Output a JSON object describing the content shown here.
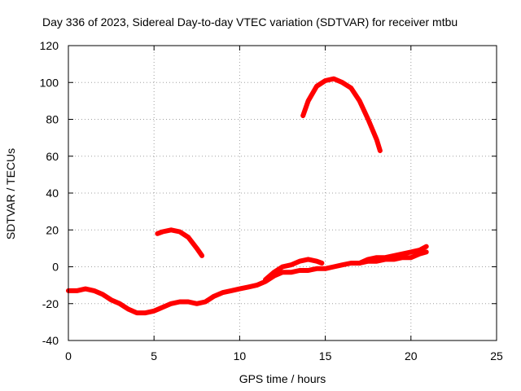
{
  "chart_data": {
    "type": "line",
    "title": "Day 336 of 2023, Sidereal Day-to-day VTEC variation (SDTVAR) for receiver mtbu",
    "xlabel": "GPS time / hours",
    "ylabel": "SDTVAR / TECUs",
    "xlim": [
      0,
      25
    ],
    "ylim": [
      -40,
      120
    ],
    "xticks": [
      0,
      5,
      10,
      15,
      20,
      25
    ],
    "yticks": [
      -40,
      -20,
      0,
      20,
      40,
      60,
      80,
      100,
      120
    ],
    "xtick_labels": [
      "0",
      "5",
      "10",
      "15",
      "20",
      "25"
    ],
    "ytick_labels": [
      "-40",
      "-20",
      "0",
      "20",
      "40",
      "60",
      "80",
      "100",
      "120"
    ],
    "grid": true,
    "legend": "none",
    "color": "#ff0000",
    "series": [
      {
        "name": "arc-main",
        "points": [
          [
            0,
            -13
          ],
          [
            0.5,
            -13
          ],
          [
            1,
            -12
          ],
          [
            1.5,
            -13
          ],
          [
            2,
            -15
          ],
          [
            2.5,
            -18
          ],
          [
            3,
            -20
          ],
          [
            3.5,
            -23
          ],
          [
            4,
            -25
          ],
          [
            4.5,
            -25
          ],
          [
            5,
            -24
          ],
          [
            5.5,
            -22
          ],
          [
            6,
            -20
          ],
          [
            6.5,
            -19
          ],
          [
            7,
            -19
          ],
          [
            7.5,
            -20
          ],
          [
            8,
            -19
          ],
          [
            8.5,
            -16
          ],
          [
            9,
            -14
          ],
          [
            9.5,
            -13
          ],
          [
            10,
            -12
          ],
          [
            10.5,
            -11
          ],
          [
            11,
            -10
          ],
          [
            11.5,
            -8
          ],
          [
            12,
            -5
          ],
          [
            12.5,
            -3
          ],
          [
            13,
            -3
          ],
          [
            13.5,
            -2
          ],
          [
            14,
            -2
          ],
          [
            14.5,
            -1
          ],
          [
            15,
            -1
          ],
          [
            15.5,
            0
          ],
          [
            16,
            1
          ],
          [
            16.5,
            2
          ],
          [
            17,
            2
          ],
          [
            17.5,
            3
          ],
          [
            18,
            3
          ],
          [
            18.5,
            4
          ],
          [
            19,
            4
          ],
          [
            19.5,
            5
          ],
          [
            20,
            5
          ],
          [
            20.5,
            7
          ],
          [
            20.9,
            8
          ]
        ]
      },
      {
        "name": "arc-mid",
        "points": [
          [
            11.5,
            -7
          ],
          [
            12,
            -3
          ],
          [
            12.5,
            0
          ],
          [
            13,
            1
          ],
          [
            13.5,
            3
          ],
          [
            14,
            4
          ],
          [
            14.5,
            3
          ],
          [
            14.8,
            2
          ]
        ]
      },
      {
        "name": "arc-upper",
        "points": [
          [
            17,
            2
          ],
          [
            17.5,
            4
          ],
          [
            18,
            5
          ],
          [
            18.5,
            5
          ],
          [
            19,
            6
          ],
          [
            19.5,
            7
          ],
          [
            20,
            8
          ],
          [
            20.5,
            9
          ],
          [
            20.9,
            11
          ]
        ]
      },
      {
        "name": "arc-hump",
        "points": [
          [
            5.2,
            18
          ],
          [
            5.5,
            19
          ],
          [
            6,
            20
          ],
          [
            6.5,
            19
          ],
          [
            7,
            16
          ],
          [
            7.5,
            10
          ],
          [
            7.8,
            6
          ]
        ]
      },
      {
        "name": "arc-peak",
        "points": [
          [
            13.7,
            82
          ],
          [
            14,
            90
          ],
          [
            14.5,
            98
          ],
          [
            15,
            101
          ],
          [
            15.5,
            102
          ],
          [
            16,
            100
          ],
          [
            16.5,
            97
          ],
          [
            17,
            90
          ],
          [
            17.5,
            80
          ],
          [
            18,
            69
          ],
          [
            18.2,
            63
          ]
        ]
      }
    ]
  }
}
